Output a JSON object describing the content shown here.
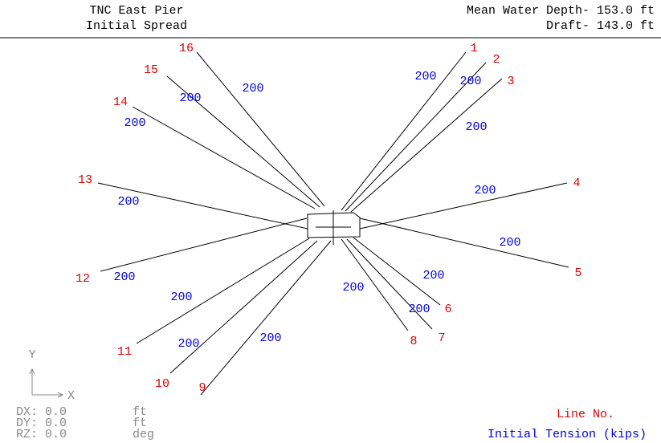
{
  "header": {
    "left": [
      "TNC East Pier",
      "Initial Spread"
    ],
    "right": [
      "Mean Water Depth- 153.0 ft",
      "Draft- 143.0 ft"
    ]
  },
  "lines": [
    {
      "label": "1",
      "tension": "200"
    },
    {
      "label": "2",
      "tension": "200"
    },
    {
      "label": "3",
      "tension": "200"
    },
    {
      "label": "4",
      "tension": "200"
    },
    {
      "label": "5",
      "tension": "200"
    },
    {
      "label": "6",
      "tension": "200"
    },
    {
      "label": "7",
      "tension": "200"
    },
    {
      "label": "8",
      "tension": "200"
    },
    {
      "label": "9",
      "tension": "200"
    },
    {
      "label": "10",
      "tension": "200"
    },
    {
      "label": "11",
      "tension": "200"
    },
    {
      "label": "12",
      "tension": "200"
    },
    {
      "label": "13",
      "tension": "200"
    },
    {
      "label": "14",
      "tension": "200"
    },
    {
      "label": "15",
      "tension": "200"
    },
    {
      "label": "16",
      "tension": "200"
    }
  ],
  "axes": {
    "y": "Y",
    "x": "X"
  },
  "offsets": [
    {
      "name": "DX:",
      "value": "0.0",
      "unit": "ft"
    },
    {
      "name": "DY:",
      "value": "0.0",
      "unit": "ft"
    },
    {
      "name": "RZ:",
      "value": "0.0",
      "unit": "deg"
    }
  ],
  "legend": {
    "line_no": "Line No.",
    "tension": "Initial Tension (kips)"
  }
}
